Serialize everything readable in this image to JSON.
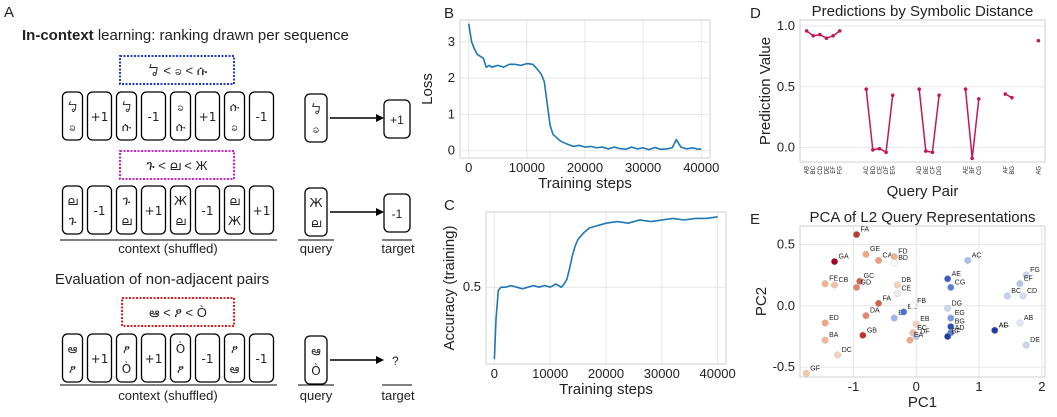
{
  "panels": {
    "A": {
      "letter": "A",
      "heading_bold": "In-context",
      "heading_rest": " learning: ranking drawn per sequence",
      "rank1": "ㆠ < ခ < ሱ",
      "rank2": "ጉ < ല < Ж",
      "eval_heading": "Evaluation of non-adjacent pairs",
      "rank3": "ఆ < ፆ < Ò",
      "plus1": "+1",
      "minus1": "-1",
      "context_label": "context (shuffled)",
      "query_label": "query",
      "target_label": "target",
      "question": "?",
      "row1_cards": [
        {
          "type": "pair",
          "top": "ㆠ",
          "bot": "ခ"
        },
        {
          "type": "label",
          "text": "+1"
        },
        {
          "type": "pair",
          "top": "ㆠ",
          "bot": "ሱ"
        },
        {
          "type": "label",
          "text": "-1"
        },
        {
          "type": "pair",
          "top": "ခ",
          "bot": "ሱ"
        },
        {
          "type": "label",
          "text": "+1"
        },
        {
          "type": "pair",
          "top": "ሱ",
          "bot": "ခ"
        },
        {
          "type": "label",
          "text": "-1"
        }
      ],
      "row2_cards": [
        {
          "type": "pair",
          "top": "ല",
          "bot": "ጉ"
        },
        {
          "type": "label",
          "text": "-1"
        },
        {
          "type": "pair",
          "top": "ጉ",
          "bot": "ല"
        },
        {
          "type": "label",
          "text": "+1"
        },
        {
          "type": "pair",
          "top": "Ж",
          "bot": "ല"
        },
        {
          "type": "label",
          "text": "-1"
        },
        {
          "type": "pair",
          "top": "ല",
          "bot": "Ж"
        },
        {
          "type": "label",
          "text": "+1"
        }
      ],
      "row3_cards": [
        {
          "type": "pair",
          "top": "ఆ",
          "bot": "ፆ"
        },
        {
          "type": "label",
          "text": "+1"
        },
        {
          "type": "pair",
          "top": "ፆ",
          "bot": "Ò"
        },
        {
          "type": "label",
          "text": "+1"
        },
        {
          "type": "pair",
          "top": "Ò",
          "bot": "ፆ"
        },
        {
          "type": "label",
          "text": "-1"
        },
        {
          "type": "pair",
          "top": "ፆ",
          "bot": "ఆ"
        },
        {
          "type": "label",
          "text": "-1"
        }
      ],
      "query1": {
        "top": "ㆠ",
        "bot": "ခ"
      },
      "query2": {
        "top": "Ж",
        "bot": "ല"
      },
      "query3": {
        "top": "ఆ",
        "bot": "Ò"
      },
      "target1": "+1",
      "target2": "-1",
      "colors": {
        "box1": "#1f3bd0",
        "box2": "#d020d0",
        "box3": "#e02020"
      }
    }
  },
  "chart_data": [
    {
      "panel": "B",
      "type": "line",
      "title": "",
      "xlabel": "Training steps",
      "ylabel": "Loss",
      "xlim": [
        -1500,
        41500
      ],
      "ylim": [
        -0.2,
        3.6
      ],
      "xticks": [
        0,
        10000,
        20000,
        30000,
        40000
      ],
      "yticks": [
        0,
        1,
        2,
        3
      ],
      "grid": true,
      "color": "#1f77b4",
      "x": [
        0,
        500,
        1000,
        1500,
        2000,
        2500,
        3000,
        3500,
        4000,
        5000,
        6000,
        7000,
        8000,
        9000,
        10000,
        11000,
        11500,
        12000,
        12500,
        13000,
        13500,
        14000,
        14500,
        15000,
        15500,
        16000,
        17000,
        18000,
        19000,
        20000,
        21000,
        22000,
        23000,
        24000,
        25000,
        26000,
        27000,
        28000,
        29000,
        30000,
        31000,
        32000,
        33000,
        34000,
        35000,
        35700,
        36500,
        37500,
        38500,
        39500,
        40000
      ],
      "y": [
        3.5,
        3.0,
        2.8,
        2.65,
        2.6,
        2.55,
        2.3,
        2.35,
        2.3,
        2.35,
        2.3,
        2.38,
        2.38,
        2.35,
        2.4,
        2.38,
        2.3,
        2.2,
        2.1,
        1.9,
        1.3,
        0.7,
        0.45,
        0.38,
        0.3,
        0.25,
        0.18,
        0.12,
        0.15,
        0.1,
        0.12,
        0.08,
        0.1,
        0.05,
        0.1,
        0.06,
        0.04,
        0.1,
        0.05,
        0.08,
        0.03,
        0.09,
        0.04,
        0.05,
        0.08,
        0.3,
        0.1,
        0.05,
        0.08,
        0.04,
        0.05
      ]
    },
    {
      "panel": "C",
      "type": "line",
      "title": "",
      "xlabel": "Training steps",
      "ylabel": "Accuracy (training)",
      "xlim": [
        -1500,
        41500
      ],
      "ylim": [
        0.02,
        0.97
      ],
      "xticks": [
        0,
        10000,
        20000,
        30000,
        40000
      ],
      "yticks": [
        0.5
      ],
      "grid": true,
      "color": "#1f77b4",
      "x": [
        0,
        300,
        700,
        1200,
        2000,
        3000,
        4000,
        5000,
        6000,
        7000,
        8000,
        9000,
        10000,
        11000,
        12000,
        12500,
        13000,
        13500,
        14000,
        14500,
        15000,
        16000,
        17000,
        18000,
        19000,
        20000,
        22000,
        24000,
        26000,
        28000,
        30000,
        32000,
        34000,
        36000,
        38000,
        40000
      ],
      "y": [
        0.05,
        0.3,
        0.48,
        0.5,
        0.5,
        0.51,
        0.5,
        0.49,
        0.5,
        0.51,
        0.5,
        0.51,
        0.5,
        0.52,
        0.5,
        0.52,
        0.55,
        0.62,
        0.7,
        0.76,
        0.8,
        0.84,
        0.87,
        0.88,
        0.89,
        0.9,
        0.91,
        0.9,
        0.92,
        0.91,
        0.92,
        0.93,
        0.92,
        0.93,
        0.93,
        0.94
      ]
    },
    {
      "panel": "D",
      "type": "line",
      "title": "Predictions by Symbolic Distance",
      "xlabel": "Query Pair",
      "ylabel": "Prediction Value",
      "ylim": [
        -0.12,
        1.05
      ],
      "yticks": [
        0.0,
        0.5,
        1.0
      ],
      "grid": true,
      "color": "#c2185b",
      "categories": [
        "AB",
        "BC",
        "CD",
        "DE",
        "EF",
        "FG",
        "AC",
        "BD",
        "CE",
        "DF",
        "EG",
        "AD",
        "BE",
        "CF",
        "DG",
        "AE",
        "BF",
        "CG",
        "AF",
        "BG",
        "AG"
      ],
      "groups": [
        {
          "values": [
            0.96,
            0.92,
            0.93,
            0.9,
            0.92,
            0.96
          ]
        },
        {
          "values": [
            0.48,
            -0.02,
            -0.01,
            -0.04,
            0.43
          ]
        },
        {
          "values": [
            0.48,
            -0.03,
            -0.04,
            0.43
          ]
        },
        {
          "values": [
            0.48,
            -0.09,
            0.4
          ]
        },
        {
          "values": [
            0.44,
            0.41
          ]
        },
        {
          "values": [
            0.88
          ]
        }
      ]
    },
    {
      "panel": "E",
      "type": "scatter",
      "title": "PCA of L2 Query Representations",
      "xlabel": "PC1",
      "ylabel": "PC2",
      "xlim": [
        -1.85,
        2.05
      ],
      "ylim": [
        -0.58,
        0.65
      ],
      "xticks": [
        -1,
        0,
        1,
        2
      ],
      "yticks": [
        -0.5,
        0.0,
        0.5
      ],
      "grid": true,
      "points": [
        {
          "label": "GF",
          "x": -1.75,
          "y": -0.55,
          "color": "#f6c6a8"
        },
        {
          "label": "ED",
          "x": -1.45,
          "y": -0.14,
          "color": "#f4a582"
        },
        {
          "label": "BA",
          "x": -1.45,
          "y": -0.28,
          "color": "#f2b79a"
        },
        {
          "label": "DC",
          "x": -1.25,
          "y": -0.4,
          "color": "#f6d0bc"
        },
        {
          "label": "FE",
          "x": -1.45,
          "y": 0.18,
          "color": "#f4b08f"
        },
        {
          "label": "CB",
          "x": -1.3,
          "y": 0.17,
          "color": "#f1c0a6"
        },
        {
          "label": "GA",
          "x": -1.3,
          "y": 0.36,
          "color": "#a50026"
        },
        {
          "label": "GC",
          "x": -0.9,
          "y": 0.2,
          "color": "#d6604d"
        },
        {
          "label": "GD",
          "x": -0.95,
          "y": 0.15,
          "color": "#e58368"
        },
        {
          "label": "FA",
          "x": -0.95,
          "y": 0.58,
          "color": "#c0392b"
        },
        {
          "label": "GE",
          "x": -0.8,
          "y": 0.42,
          "color": "#f4a582"
        },
        {
          "label": "CA",
          "x": -0.6,
          "y": 0.37,
          "color": "#ef9a78"
        },
        {
          "label": "FD",
          "x": -0.35,
          "y": 0.4,
          "color": "#f2b08f"
        },
        {
          "label": "BD",
          "x": -0.35,
          "y": 0.35,
          "color": "#ffffff"
        },
        {
          "label": "FA",
          "x": -0.6,
          "y": 0.02,
          "color": "#d6604d"
        },
        {
          "label": "DA",
          "x": -0.8,
          "y": -0.08,
          "color": "#e8856c"
        },
        {
          "label": "GB",
          "x": -0.85,
          "y": -0.24,
          "color": "#c8322a"
        },
        {
          "label": "DB",
          "x": -0.3,
          "y": 0.17,
          "color": "#f6d0bc"
        },
        {
          "label": "CE",
          "x": -0.3,
          "y": 0.1,
          "color": "#e9eef7"
        },
        {
          "label": "BF",
          "x": -0.35,
          "y": -0.1,
          "color": "#9bb6e8"
        },
        {
          "label": "BE",
          "x": -0.2,
          "y": -0.05,
          "color": "#4a6fd6"
        },
        {
          "label": "FB",
          "x": -0.05,
          "y": 0.0,
          "color": "#ffffff"
        },
        {
          "label": "EB",
          "x": 0.0,
          "y": -0.15,
          "color": "#f6d0bc"
        },
        {
          "label": "EC",
          "x": -0.05,
          "y": -0.22,
          "color": "#f4b79a"
        },
        {
          "label": "DF",
          "x": 0.0,
          "y": -0.25,
          "color": "#b8c9ee"
        },
        {
          "label": "EA",
          "x": -0.1,
          "y": -0.28,
          "color": "#f4a582"
        },
        {
          "label": "AC",
          "x": 0.82,
          "y": 0.37,
          "color": "#a9c0ea"
        },
        {
          "label": "AE",
          "x": 0.5,
          "y": 0.22,
          "color": "#3a5cc4"
        },
        {
          "label": "CG",
          "x": 0.55,
          "y": 0.15,
          "color": "#5a7fd8"
        },
        {
          "label": "DG",
          "x": 0.5,
          "y": -0.02,
          "color": "#cbd6f2"
        },
        {
          "label": "EG",
          "x": 0.55,
          "y": -0.1,
          "color": "#7f9ee0"
        },
        {
          "label": "BG",
          "x": 0.55,
          "y": -0.17,
          "color": "#2f4fb8"
        },
        {
          "label": "AD",
          "x": 0.55,
          "y": -0.22,
          "color": "#5a7fd8"
        },
        {
          "label": "BF",
          "x": 0.5,
          "y": -0.25,
          "color": "#203e9e"
        },
        {
          "label": "AF",
          "x": 1.25,
          "y": -0.2,
          "color": "#1f3ba8"
        },
        {
          "label": "AG",
          "x": 1.25,
          "y": -0.2,
          "color": "#1f3ba8"
        },
        {
          "label": "FG",
          "x": 1.75,
          "y": 0.25,
          "color": "#c8d4f0"
        },
        {
          "label": "EF",
          "x": 1.65,
          "y": 0.18,
          "color": "#b4c6ec"
        },
        {
          "label": "CD",
          "x": 1.7,
          "y": 0.08,
          "color": "#d2dcf3"
        },
        {
          "label": "BC",
          "x": 1.45,
          "y": 0.08,
          "color": "#c2cff0"
        },
        {
          "label": "AB",
          "x": 1.65,
          "y": -0.14,
          "color": "#dfe6f6"
        },
        {
          "label": "DE",
          "x": 1.75,
          "y": -0.32,
          "color": "#c8d4f0"
        }
      ]
    }
  ],
  "panel_letters": [
    "B",
    "C",
    "D",
    "E"
  ]
}
